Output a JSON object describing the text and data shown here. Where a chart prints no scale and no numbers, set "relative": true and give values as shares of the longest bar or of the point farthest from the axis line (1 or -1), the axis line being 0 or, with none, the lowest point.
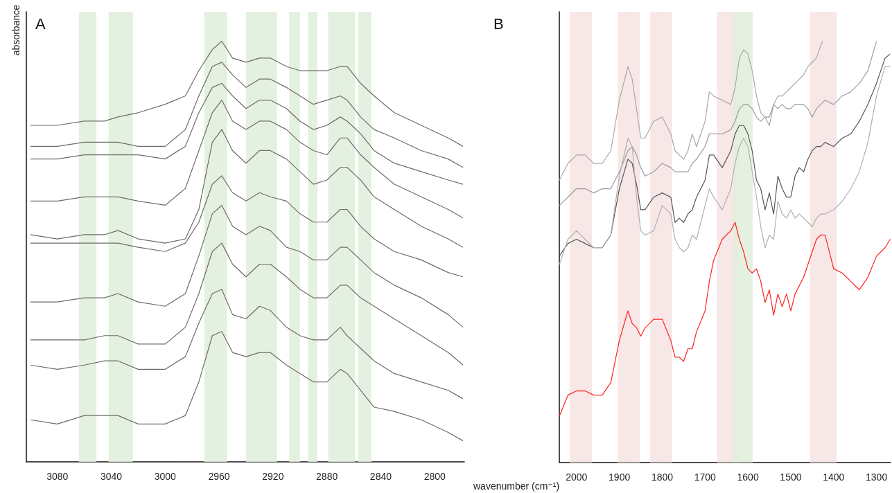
{
  "chart_data": [
    {
      "type": "line",
      "relative": true,
      "ylabel": "absorbance",
      "annotations": [
        "A"
      ],
      "tick_labels": "x",
      "xlim": [
        3103,
        2778
      ],
      "xticks": [
        3080,
        3040,
        3000,
        2960,
        2920,
        2880,
        2840,
        2800
      ],
      "x": [
        3100,
        3080,
        3060,
        3045,
        3035,
        3020,
        3000,
        2985,
        2975,
        2965,
        2958,
        2950,
        2940,
        2930,
        2922,
        2910,
        2900,
        2890,
        2880,
        2870,
        2865,
        2855,
        2845,
        2830,
        2810,
        2790,
        2779
      ],
      "bands": [
        {
          "axis": "x",
          "from": 3064,
          "to": 3051,
          "color": "#e1eedb"
        },
        {
          "axis": "x",
          "from": 3042,
          "to": 3024,
          "color": "#e1eedb"
        },
        {
          "axis": "x",
          "from": 2971,
          "to": 2954,
          "color": "#e1eedb"
        },
        {
          "axis": "x",
          "from": 2940,
          "to": 2917,
          "color": "#e1eedb"
        },
        {
          "axis": "x",
          "from": 2908,
          "to": 2900,
          "color": "#e1eedb"
        },
        {
          "axis": "x",
          "from": 2894,
          "to": 2887,
          "color": "#e1eedb"
        },
        {
          "axis": "x",
          "from": 2879,
          "to": 2859,
          "color": "#e1eedb"
        },
        {
          "axis": "x",
          "from": 2857,
          "to": 2847,
          "color": "#e1eedb"
        }
      ],
      "series": [
        {
          "color": "#6b6b6b",
          "values": [
            0.8,
            0.8,
            0.81,
            0.81,
            0.82,
            0.83,
            0.85,
            0.87,
            0.93,
            0.98,
            1.0,
            0.96,
            0.95,
            0.96,
            0.96,
            0.94,
            0.93,
            0.93,
            0.93,
            0.94,
            0.94,
            0.9,
            0.87,
            0.83,
            0.8,
            0.77,
            0.75
          ]
        },
        {
          "color": "#6b6b6b",
          "values": [
            0.75,
            0.75,
            0.76,
            0.76,
            0.76,
            0.75,
            0.75,
            0.79,
            0.87,
            0.94,
            0.95,
            0.92,
            0.89,
            0.91,
            0.91,
            0.89,
            0.87,
            0.85,
            0.86,
            0.87,
            0.86,
            0.82,
            0.79,
            0.77,
            0.74,
            0.72,
            0.7
          ]
        },
        {
          "color": "#6b6b6b",
          "values": [
            0.72,
            0.72,
            0.73,
            0.73,
            0.73,
            0.73,
            0.72,
            0.75,
            0.83,
            0.89,
            0.9,
            0.87,
            0.84,
            0.86,
            0.86,
            0.84,
            0.81,
            0.79,
            0.8,
            0.82,
            0.81,
            0.78,
            0.74,
            0.71,
            0.69,
            0.67,
            0.66
          ]
        },
        {
          "color": "#6b6b6b",
          "values": [
            0.62,
            0.62,
            0.63,
            0.63,
            0.63,
            0.62,
            0.61,
            0.65,
            0.74,
            0.83,
            0.86,
            0.81,
            0.79,
            0.81,
            0.81,
            0.79,
            0.76,
            0.74,
            0.73,
            0.77,
            0.77,
            0.73,
            0.7,
            0.66,
            0.63,
            0.6,
            0.58
          ]
        },
        {
          "color": "#6b6b6b",
          "values": [
            0.54,
            0.53,
            0.54,
            0.54,
            0.55,
            0.53,
            0.52,
            0.53,
            0.6,
            0.76,
            0.79,
            0.74,
            0.71,
            0.74,
            0.74,
            0.72,
            0.69,
            0.66,
            0.67,
            0.7,
            0.7,
            0.67,
            0.63,
            0.6,
            0.56,
            0.53,
            0.51
          ]
        },
        {
          "color": "#6b6b6b",
          "values": [
            0.52,
            0.52,
            0.52,
            0.52,
            0.52,
            0.51,
            0.5,
            0.52,
            0.57,
            0.66,
            0.68,
            0.64,
            0.62,
            0.64,
            0.63,
            0.62,
            0.59,
            0.57,
            0.57,
            0.6,
            0.6,
            0.56,
            0.53,
            0.5,
            0.48,
            0.45,
            0.44
          ]
        },
        {
          "color": "#6b6b6b",
          "values": [
            0.38,
            0.38,
            0.39,
            0.39,
            0.4,
            0.38,
            0.37,
            0.4,
            0.49,
            0.59,
            0.61,
            0.56,
            0.54,
            0.56,
            0.55,
            0.51,
            0.5,
            0.48,
            0.48,
            0.51,
            0.51,
            0.48,
            0.45,
            0.42,
            0.39,
            0.35,
            0.32
          ]
        },
        {
          "color": "#6b6b6b",
          "values": [
            0.29,
            0.29,
            0.29,
            0.3,
            0.3,
            0.28,
            0.28,
            0.32,
            0.4,
            0.5,
            0.52,
            0.47,
            0.44,
            0.47,
            0.47,
            0.44,
            0.41,
            0.39,
            0.39,
            0.42,
            0.42,
            0.39,
            0.37,
            0.34,
            0.3,
            0.26,
            0.23
          ]
        },
        {
          "color": "#6b6b6b",
          "values": [
            0.23,
            0.22,
            0.23,
            0.24,
            0.24,
            0.22,
            0.22,
            0.25,
            0.33,
            0.4,
            0.41,
            0.35,
            0.34,
            0.37,
            0.36,
            0.32,
            0.3,
            0.29,
            0.29,
            0.32,
            0.3,
            0.27,
            0.24,
            0.21,
            0.19,
            0.17,
            0.15
          ]
        },
        {
          "color": "#6b6b6b",
          "values": [
            0.1,
            0.09,
            0.11,
            0.11,
            0.11,
            0.09,
            0.09,
            0.11,
            0.19,
            0.3,
            0.31,
            0.26,
            0.25,
            0.26,
            0.26,
            0.23,
            0.21,
            0.19,
            0.19,
            0.22,
            0.21,
            0.17,
            0.13,
            0.12,
            0.1,
            0.07,
            0.05
          ]
        }
      ]
    },
    {
      "type": "line",
      "relative": true,
      "xlabel": "wavenumber (cm⁻¹)",
      "annotations": [
        "B"
      ],
      "tick_labels": "x",
      "xlim": [
        2040,
        1267
      ],
      "xticks": [
        2000,
        1900,
        1800,
        1700,
        1600,
        1500,
        1400,
        1300
      ],
      "x": [
        2040,
        2020,
        2000,
        1980,
        1960,
        1940,
        1920,
        1900,
        1880,
        1870,
        1860,
        1850,
        1840,
        1820,
        1800,
        1780,
        1770,
        1760,
        1750,
        1740,
        1730,
        1720,
        1700,
        1690,
        1680,
        1660,
        1640,
        1630,
        1620,
        1610,
        1600,
        1590,
        1580,
        1570,
        1560,
        1550,
        1540,
        1530,
        1520,
        1510,
        1500,
        1490,
        1480,
        1470,
        1460,
        1450,
        1440,
        1430,
        1420,
        1400,
        1380,
        1360,
        1340,
        1320,
        1300,
        1280,
        1268
      ],
      "bands": [
        {
          "axis": "x",
          "from": 2016,
          "to": 1964,
          "color": "#f7e3e3"
        },
        {
          "axis": "x",
          "from": 1904,
          "to": 1852,
          "color": "#f7e3e3"
        },
        {
          "axis": "x",
          "from": 1828,
          "to": 1777,
          "color": "#f7e3e3"
        },
        {
          "axis": "x",
          "from": 1672,
          "to": 1623,
          "color": "#f7e3e3"
        },
        {
          "axis": "x",
          "from": 1634,
          "to": 1589,
          "color": "#e1eedb"
        },
        {
          "axis": "x",
          "from": 1455,
          "to": 1393,
          "color": "#f7e3e3"
        }
      ],
      "series": [
        {
          "color": "#a8a8a8",
          "x": [
            2040,
            2020,
            2000,
            1980,
            1960,
            1940,
            1920,
            1900,
            1880,
            1870,
            1860,
            1850,
            1840,
            1820,
            1800,
            1780,
            1770,
            1760,
            1750,
            1740,
            1730,
            1720,
            1700,
            1690,
            1680,
            1660,
            1640,
            1630,
            1620,
            1610,
            1600,
            1590,
            1580,
            1570,
            1560,
            1550,
            1540,
            1530,
            1520,
            1510,
            1500,
            1490,
            1480,
            1470,
            1460,
            1450,
            1440,
            1430,
            1426
          ],
          "values": [
            0.67,
            0.71,
            0.73,
            0.73,
            0.71,
            0.71,
            0.74,
            0.86,
            0.94,
            0.91,
            0.84,
            0.77,
            0.77,
            0.81,
            0.82,
            0.78,
            0.74,
            0.73,
            0.72,
            0.74,
            0.78,
            0.75,
            0.81,
            0.88,
            0.87,
            0.86,
            0.85,
            0.89,
            0.96,
            0.98,
            0.97,
            0.93,
            0.87,
            0.83,
            0.82,
            0.8,
            0.85,
            0.87,
            0.87,
            0.88,
            0.89,
            0.9,
            0.91,
            0.92,
            0.94,
            0.95,
            0.96,
            0.99,
            1.0
          ]
        },
        {
          "color": "#9c9c9c",
          "x": [
            2040,
            2020,
            2000,
            1980,
            1960,
            1940,
            1920,
            1900,
            1880,
            1870,
            1860,
            1850,
            1840,
            1820,
            1800,
            1780,
            1770,
            1760,
            1750,
            1740,
            1730,
            1720,
            1700,
            1690,
            1680,
            1660,
            1640,
            1630,
            1620,
            1610,
            1600,
            1590,
            1580,
            1570,
            1560,
            1550,
            1540,
            1530,
            1520,
            1510,
            1500,
            1490,
            1480,
            1470,
            1460,
            1450,
            1440,
            1430,
            1420,
            1400,
            1380,
            1360,
            1340,
            1320,
            1300
          ],
          "values": [
            0.61,
            0.63,
            0.65,
            0.65,
            0.64,
            0.65,
            0.65,
            0.69,
            0.74,
            0.75,
            0.73,
            0.7,
            0.68,
            0.69,
            0.71,
            0.7,
            0.69,
            0.69,
            0.69,
            0.69,
            0.71,
            0.72,
            0.75,
            0.78,
            0.78,
            0.78,
            0.79,
            0.81,
            0.84,
            0.85,
            0.85,
            0.84,
            0.82,
            0.81,
            0.82,
            0.82,
            0.85,
            0.84,
            0.85,
            0.84,
            0.84,
            0.85,
            0.85,
            0.85,
            0.84,
            0.82,
            0.84,
            0.85,
            0.86,
            0.85,
            0.87,
            0.88,
            0.9,
            0.93,
            1.0
          ]
        },
        {
          "color": "#555555",
          "values": [
            0.49,
            0.52,
            0.53,
            0.52,
            0.51,
            0.51,
            0.54,
            0.65,
            0.72,
            0.71,
            0.66,
            0.6,
            0.6,
            0.63,
            0.64,
            0.63,
            0.57,
            0.58,
            0.57,
            0.59,
            0.6,
            0.63,
            0.67,
            0.73,
            0.73,
            0.7,
            0.74,
            0.78,
            0.8,
            0.8,
            0.78,
            0.74,
            0.67,
            0.65,
            0.6,
            0.64,
            0.59,
            0.68,
            0.65,
            0.63,
            0.63,
            0.68,
            0.7,
            0.69,
            0.72,
            0.74,
            0.75,
            0.75,
            0.76,
            0.75,
            0.77,
            0.78,
            0.81,
            0.85,
            0.9,
            0.96,
            0.97
          ]
        },
        {
          "color": "#b0b0b0",
          "values": [
            0.47,
            0.53,
            0.55,
            0.53,
            0.51,
            0.51,
            0.54,
            0.68,
            0.77,
            0.75,
            0.63,
            0.55,
            0.54,
            0.55,
            0.61,
            0.59,
            0.53,
            0.51,
            0.5,
            0.51,
            0.54,
            0.53,
            0.61,
            0.65,
            0.63,
            0.6,
            0.65,
            0.71,
            0.75,
            0.77,
            0.75,
            0.69,
            0.63,
            0.56,
            0.51,
            0.54,
            0.53,
            0.62,
            0.59,
            0.58,
            0.6,
            0.58,
            0.59,
            0.58,
            0.57,
            0.56,
            0.58,
            0.59,
            0.59,
            0.6,
            0.62,
            0.65,
            0.69,
            0.76,
            0.87,
            0.94,
            0.94
          ]
        },
        {
          "color": "#ff2020",
          "values": [
            0.11,
            0.16,
            0.17,
            0.17,
            0.16,
            0.16,
            0.19,
            0.29,
            0.36,
            0.33,
            0.32,
            0.3,
            0.32,
            0.34,
            0.34,
            0.29,
            0.25,
            0.25,
            0.24,
            0.27,
            0.27,
            0.31,
            0.36,
            0.43,
            0.48,
            0.53,
            0.55,
            0.57,
            0.53,
            0.5,
            0.46,
            0.45,
            0.46,
            0.43,
            0.38,
            0.41,
            0.35,
            0.4,
            0.37,
            0.4,
            0.36,
            0.4,
            0.42,
            0.44,
            0.47,
            0.5,
            0.53,
            0.54,
            0.54,
            0.46,
            0.45,
            0.43,
            0.41,
            0.44,
            0.49,
            0.51,
            0.53
          ]
        }
      ]
    }
  ]
}
